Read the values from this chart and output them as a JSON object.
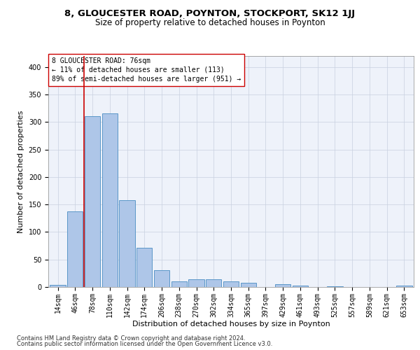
{
  "title1": "8, GLOUCESTER ROAD, POYNTON, STOCKPORT, SK12 1JJ",
  "title2": "Size of property relative to detached houses in Poynton",
  "xlabel": "Distribution of detached houses by size in Poynton",
  "ylabel": "Number of detached properties",
  "categories": [
    "14sqm",
    "46sqm",
    "78sqm",
    "110sqm",
    "142sqm",
    "174sqm",
    "206sqm",
    "238sqm",
    "270sqm",
    "302sqm",
    "334sqm",
    "365sqm",
    "397sqm",
    "429sqm",
    "461sqm",
    "493sqm",
    "525sqm",
    "557sqm",
    "589sqm",
    "621sqm",
    "653sqm"
  ],
  "values": [
    4,
    137,
    311,
    315,
    158,
    71,
    31,
    10,
    14,
    14,
    10,
    8,
    0,
    5,
    3,
    0,
    1,
    0,
    0,
    0,
    3
  ],
  "bar_color": "#aec6e8",
  "bar_edge_color": "#5a96c8",
  "marker_color": "#cc0000",
  "annotation_text": "8 GLOUCESTER ROAD: 76sqm\n← 11% of detached houses are smaller (113)\n89% of semi-detached houses are larger (951) →",
  "annotation_box_color": "#ffffff",
  "annotation_box_edge": "#cc0000",
  "footer1": "Contains HM Land Registry data © Crown copyright and database right 2024.",
  "footer2": "Contains public sector information licensed under the Open Government Licence v3.0.",
  "ylim": [
    0,
    420
  ],
  "yticks": [
    0,
    50,
    100,
    150,
    200,
    250,
    300,
    350,
    400
  ],
  "bg_color": "#eef2fa",
  "title_fontsize": 9.5,
  "subtitle_fontsize": 8.5,
  "axis_label_fontsize": 8,
  "tick_fontsize": 7,
  "footer_fontsize": 6,
  "annotation_fontsize": 7
}
